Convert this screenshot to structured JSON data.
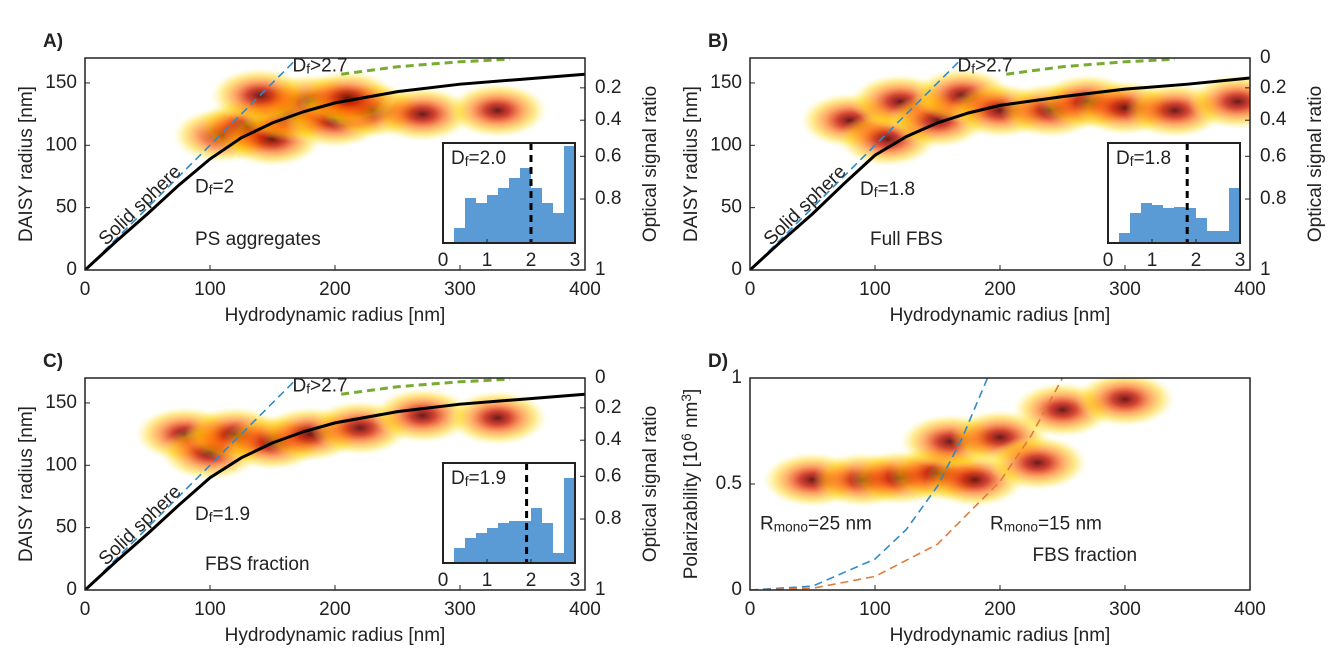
{
  "chart_data": [
    {
      "type": "heatmap",
      "panel": "A)",
      "xlabel": "Hydrodynamic radius [nm]",
      "ylabel": "DAISY radius [nm]",
      "y2label": "Optical signal ratio",
      "xlim": [
        0,
        400
      ],
      "xticks": [
        0,
        100,
        200,
        300,
        400
      ],
      "ylim": [
        0,
        170
      ],
      "yticks": [
        0,
        50,
        100,
        150
      ],
      "y2lim": [
        1,
        0
      ],
      "y2ticks": [
        0.2,
        0.4,
        0.6,
        0.8,
        1
      ],
      "density": {
        "x": [
          110,
          130,
          150,
          165,
          180,
          200,
          230,
          270,
          330,
          140,
          210
        ],
        "y": [
          108,
          115,
          105,
          125,
          135,
          120,
          128,
          125,
          128,
          140,
          138
        ]
      },
      "series": [
        {
          "name": "Solid sphere",
          "color": "#2e8bc9",
          "dash": true,
          "x": [
            0,
            170
          ],
          "values": [
            0,
            170
          ]
        },
        {
          "name": [
            {
              "t": "D"
            },
            {
              "t": "f",
              "s": "sub"
            },
            {
              "t": "=2"
            }
          ],
          "color": "#000000",
          "dash": false,
          "x": [
            0,
            25,
            50,
            75,
            100,
            125,
            150,
            175,
            200,
            250,
            300,
            350,
            400
          ],
          "values": [
            0,
            23,
            45,
            68,
            89,
            106,
            118,
            127,
            134,
            143,
            149,
            153,
            157
          ]
        },
        {
          "name": [
            {
              "t": "D"
            },
            {
              "t": "f",
              "s": "sub"
            },
            {
              "t": ">2.7"
            }
          ],
          "color": "#77ac30",
          "dash": true,
          "x": [
            205,
            250,
            300,
            340
          ],
          "values": [
            157,
            163,
            167,
            169
          ]
        }
      ],
      "annotation": "PS aggregates",
      "inset": {
        "type": "histogram",
        "label": [
          {
            "t": "D"
          },
          {
            "t": "f",
            "s": "sub"
          },
          {
            "t": "=2.0"
          }
        ],
        "marker": 2.0,
        "xlim": [
          0,
          3
        ],
        "xticks": [
          0,
          1,
          2,
          3
        ],
        "ylim": [
          0,
          1
        ],
        "color": "#5b9bd5",
        "bins": [
          0.25,
          0.5,
          0.75,
          1,
          1.25,
          1.5,
          1.75,
          2,
          2.25,
          2.5,
          2.75,
          3
        ],
        "values": [
          0.15,
          0.45,
          0.4,
          0.48,
          0.55,
          0.65,
          0.75,
          0.55,
          0.4,
          0.3,
          0.97
        ]
      }
    },
    {
      "type": "heatmap",
      "panel": "B)",
      "xlabel": "Hydrodynamic radius [nm]",
      "ylabel": "DAISY radius [nm]",
      "y2label": "Optical signal ratio",
      "xlim": [
        0,
        400
      ],
      "xticks": [
        0,
        100,
        200,
        300,
        400
      ],
      "ylim": [
        0,
        170
      ],
      "yticks": [
        0,
        50,
        100,
        150
      ],
      "y2lim": [
        1,
        0
      ],
      "y2ticks": [
        0,
        0.2,
        0.4,
        0.6,
        0.8,
        1
      ],
      "density": {
        "x": [
          80,
          110,
          120,
          150,
          170,
          200,
          240,
          270,
          300,
          340,
          390
        ],
        "y": [
          120,
          105,
          135,
          120,
          140,
          128,
          128,
          135,
          130,
          128,
          135
        ]
      },
      "series": [
        {
          "name": "Solid sphere",
          "color": "#2e8bc9",
          "dash": true,
          "x": [
            0,
            170
          ],
          "values": [
            0,
            170
          ]
        },
        {
          "name": [
            {
              "t": "D"
            },
            {
              "t": "f",
              "s": "sub"
            },
            {
              "t": "=1.8"
            }
          ],
          "color": "#000000",
          "dash": false,
          "x": [
            0,
            25,
            50,
            75,
            100,
            125,
            150,
            175,
            200,
            250,
            300,
            350,
            400
          ],
          "values": [
            0,
            23,
            45,
            69,
            92,
            107,
            118,
            126,
            132,
            139,
            145,
            149,
            154
          ]
        },
        {
          "name": [
            {
              "t": "D"
            },
            {
              "t": "f",
              "s": "sub"
            },
            {
              "t": ">2.7"
            }
          ],
          "color": "#77ac30",
          "dash": true,
          "x": [
            205,
            250,
            300,
            340
          ],
          "values": [
            157,
            163,
            167,
            169
          ]
        }
      ],
      "annotation": "Full FBS",
      "inset": {
        "type": "histogram",
        "label": [
          {
            "t": "D"
          },
          {
            "t": "f",
            "s": "sub"
          },
          {
            "t": "=1.8"
          }
        ],
        "marker": 1.8,
        "xlim": [
          0,
          3
        ],
        "xticks": [
          0,
          1,
          2,
          3
        ],
        "ylim": [
          0,
          1
        ],
        "color": "#5b9bd5",
        "bins": [
          0.25,
          0.5,
          0.75,
          1,
          1.25,
          1.5,
          1.75,
          2,
          2.25,
          2.5,
          2.75,
          3
        ],
        "values": [
          0.1,
          0.3,
          0.4,
          0.38,
          0.35,
          0.36,
          0.35,
          0.25,
          0.12,
          0.12,
          0.55
        ]
      }
    },
    {
      "type": "heatmap",
      "panel": "C)",
      "xlabel": "Hydrodynamic radius [nm]",
      "ylabel": "DAISY radius [nm]",
      "y2label": "Optical signal ratio",
      "xlim": [
        0,
        400
      ],
      "xticks": [
        0,
        100,
        200,
        300,
        400
      ],
      "ylim": [
        0,
        170
      ],
      "yticks": [
        0,
        50,
        100,
        150
      ],
      "y2lim": [
        1,
        0
      ],
      "y2ticks": [
        0,
        0.2,
        0.4,
        0.6,
        0.8,
        1
      ],
      "density": {
        "x": [
          80,
          100,
          120,
          150,
          180,
          220,
          270,
          330
        ],
        "y": [
          125,
          110,
          125,
          118,
          125,
          130,
          140,
          138
        ]
      },
      "series": [
        {
          "name": "Solid sphere",
          "color": "#2e8bc9",
          "dash": true,
          "x": [
            0,
            170
          ],
          "values": [
            0,
            170
          ]
        },
        {
          "name": [
            {
              "t": "D"
            },
            {
              "t": "f",
              "s": "sub"
            },
            {
              "t": "=1.9"
            }
          ],
          "color": "#000000",
          "dash": false,
          "x": [
            0,
            25,
            50,
            75,
            100,
            125,
            150,
            175,
            200,
            250,
            300,
            350,
            400
          ],
          "values": [
            0,
            23,
            45,
            68,
            90,
            106,
            118,
            127,
            134,
            143,
            149,
            153,
            157
          ]
        },
        {
          "name": [
            {
              "t": "D"
            },
            {
              "t": "f",
              "s": "sub"
            },
            {
              "t": ">2.7"
            }
          ],
          "color": "#77ac30",
          "dash": true,
          "x": [
            205,
            250,
            300,
            340
          ],
          "values": [
            157,
            163,
            167,
            169
          ]
        }
      ],
      "annotation": "FBS fraction",
      "inset": {
        "type": "histogram",
        "label": [
          {
            "t": "D"
          },
          {
            "t": "f",
            "s": "sub"
          },
          {
            "t": "=1.9"
          }
        ],
        "marker": 1.9,
        "xlim": [
          0,
          3
        ],
        "xticks": [
          0,
          1,
          2,
          3
        ],
        "ylim": [
          0,
          1
        ],
        "color": "#5b9bd5",
        "bins": [
          0.25,
          0.5,
          0.75,
          1,
          1.25,
          1.5,
          1.75,
          2,
          2.25,
          2.5,
          2.75,
          3
        ],
        "values": [
          0.15,
          0.25,
          0.3,
          0.35,
          0.4,
          0.42,
          0.42,
          0.55,
          0.4,
          0.1,
          0.85
        ]
      }
    },
    {
      "type": "heatmap",
      "panel": "D)",
      "xlabel": "Hydrodynamic radius [nm]",
      "ylabel": [
        {
          "t": "Polarizability [10"
        },
        {
          "t": "6",
          "s": "sup"
        },
        {
          "t": " nm"
        },
        {
          "t": "3",
          "s": "sup"
        },
        {
          "t": "]"
        }
      ],
      "xlim": [
        0,
        400
      ],
      "xticks": [
        0,
        100,
        200,
        300,
        400
      ],
      "ylim": [
        0,
        1
      ],
      "yticks": [
        0,
        0.5,
        1
      ],
      "density": {
        "x": [
          50,
          90,
          120,
          150,
          180,
          160,
          200,
          230,
          250,
          300
        ],
        "y": [
          0.52,
          0.52,
          0.53,
          0.55,
          0.52,
          0.7,
          0.72,
          0.6,
          0.85,
          0.9
        ]
      },
      "series": [
        {
          "name": [
            {
              "t": "R"
            },
            {
              "t": "mono",
              "s": "sub"
            },
            {
              "t": "=25 nm"
            }
          ],
          "color": "#2e8bc9",
          "dash": true,
          "x": [
            0,
            50,
            100,
            125,
            150,
            170,
            190
          ],
          "values": [
            0,
            0.018,
            0.146,
            0.285,
            0.49,
            0.72,
            1
          ]
        },
        {
          "name": [
            {
              "t": "R"
            },
            {
              "t": "mono",
              "s": "sub"
            },
            {
              "t": "=15 nm"
            }
          ],
          "color": "#e07b39",
          "dash": true,
          "x": [
            0,
            50,
            100,
            150,
            200,
            225,
            250
          ],
          "values": [
            0,
            0.008,
            0.064,
            0.216,
            0.512,
            0.729,
            1
          ]
        }
      ],
      "annotation": "FBS fraction"
    }
  ]
}
